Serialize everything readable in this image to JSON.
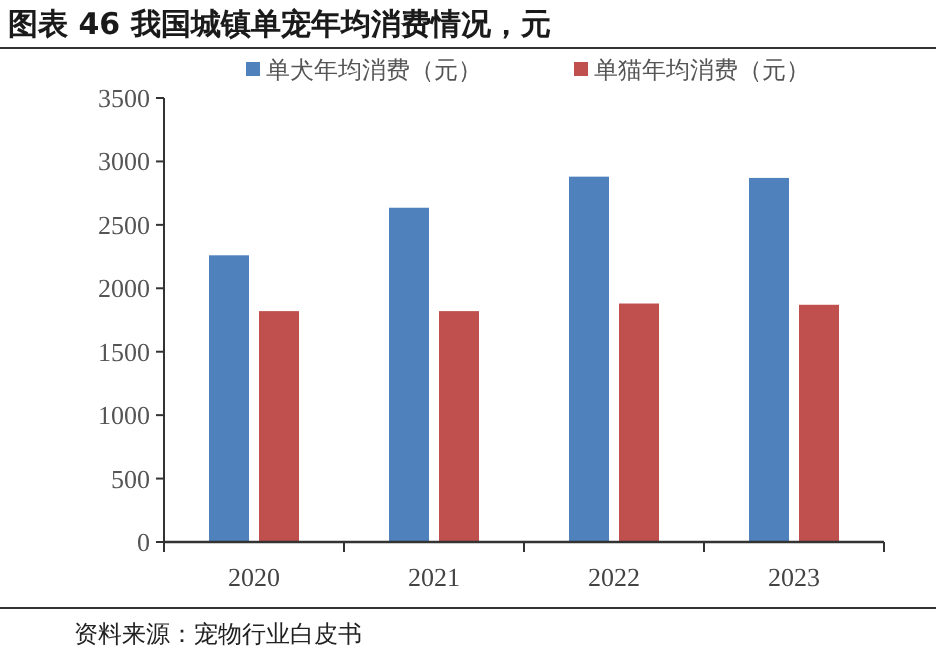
{
  "chart_data": {
    "type": "bar",
    "title": "图表 46 我国城镇单宠年均消费情况，元",
    "categories": [
      "2020",
      "2021",
      "2022",
      "2023"
    ],
    "series": [
      {
        "name": "单犬年均消费（元）",
        "color": "#4f81bd",
        "values": [
          2260,
          2635,
          2880,
          2870
        ]
      },
      {
        "name": "单猫年均消费（元）",
        "color": "#c0504d",
        "values": [
          1820,
          1820,
          1880,
          1870
        ]
      }
    ],
    "ylim": [
      0,
      3500
    ],
    "yticks": [
      0,
      500,
      1000,
      1500,
      2000,
      2500,
      3000,
      3500
    ],
    "grid": false,
    "legend": "top",
    "annotations": [
      "资料来源：宠物行业白皮书"
    ]
  }
}
